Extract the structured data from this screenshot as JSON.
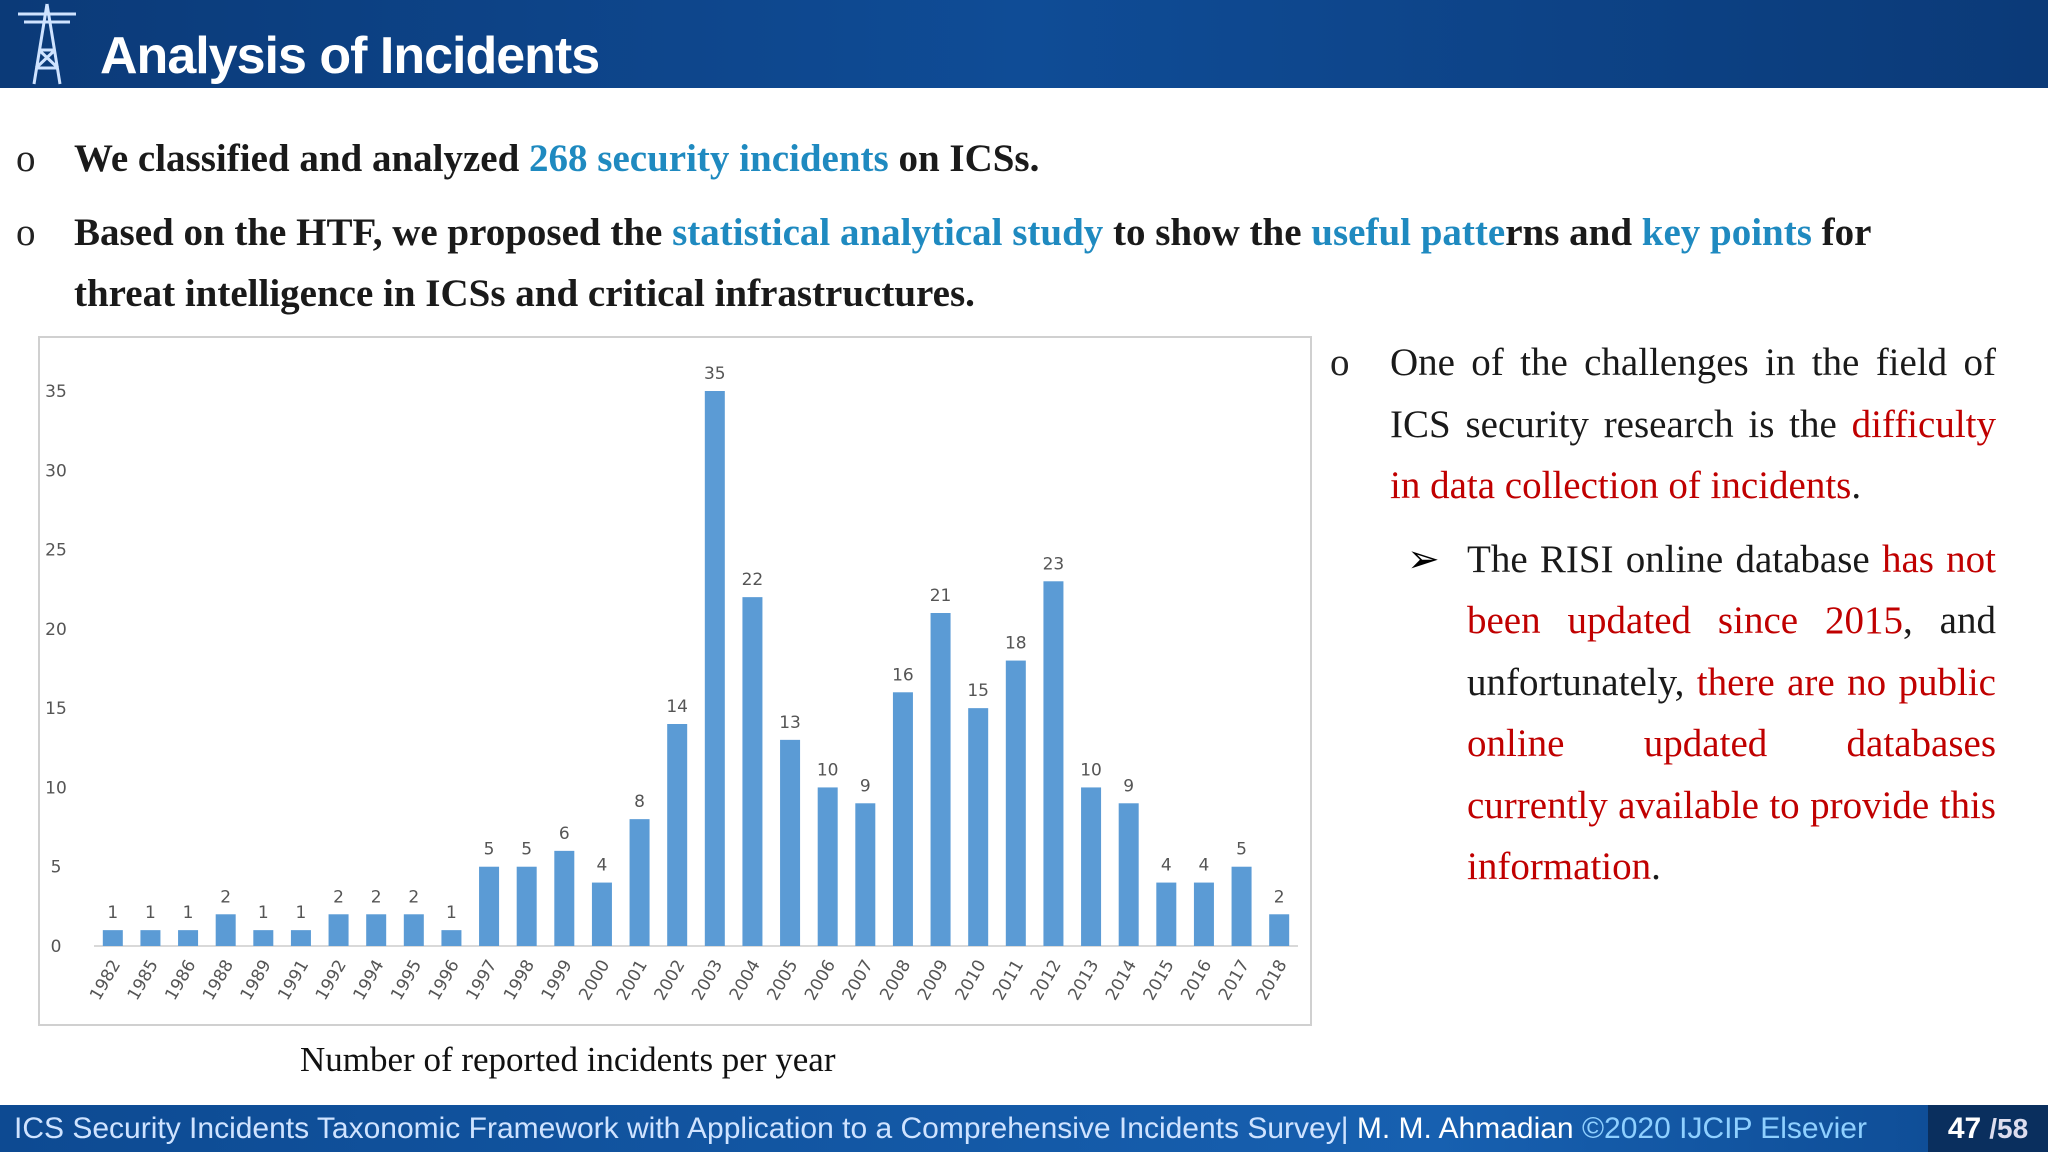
{
  "header": {
    "title": "Analysis of Incidents"
  },
  "bullets": [
    [
      {
        "text": "We classified and analyzed ",
        "color": "#1a1a1a"
      },
      {
        "text": "268 security incidents",
        "color": "#1f8ac0"
      },
      {
        "text": " on ICSs.",
        "color": "#1a1a1a"
      }
    ],
    [
      {
        "text": "Based on the HTF, we proposed the ",
        "color": "#1a1a1a"
      },
      {
        "text": "statistical analytical study",
        "color": "#1f8ac0"
      },
      {
        "text": " to show the ",
        "color": "#1a1a1a"
      },
      {
        "text": "useful patte",
        "color": "#1f8ac0"
      },
      {
        "text": "rns and ",
        "color": "#1a1a1a"
      },
      {
        "text": "key points",
        "color": "#1f8ac0"
      },
      {
        "text": " for threat intelligence in ICSs and critical infrastructures.",
        "color": "#1a1a1a"
      }
    ]
  ],
  "side_text": {
    "paragraph": [
      {
        "text": "One of the challenges in the field of ICS security research is the ",
        "color": "#1a1a1a"
      },
      {
        "text": "difficulty in data collection of incidents",
        "color": "#c00000"
      },
      {
        "text": ".",
        "color": "#1a1a1a"
      }
    ],
    "sub_paragraph": [
      {
        "text": "The RISI online database ",
        "color": "#1a1a1a"
      },
      {
        "text": "has not been updated since 2015",
        "color": "#c00000"
      },
      {
        "text": ", and unfortunately, ",
        "color": "#1a1a1a"
      },
      {
        "text": "there are no public online updated databases currently available to provide this information",
        "color": "#c00000"
      },
      {
        "text": ".",
        "color": "#1a1a1a"
      }
    ]
  },
  "chart_data": {
    "type": "bar",
    "categories": [
      "1982",
      "1985",
      "1986",
      "1988",
      "1989",
      "1991",
      "1992",
      "1994",
      "1995",
      "1996",
      "1997",
      "1998",
      "1999",
      "2000",
      "2001",
      "2002",
      "2003",
      "2004",
      "2005",
      "2006",
      "2007",
      "2008",
      "2009",
      "2010",
      "2011",
      "2012",
      "2013",
      "2014",
      "2015",
      "2016",
      "2017",
      "2018"
    ],
    "values": [
      1,
      1,
      1,
      2,
      1,
      1,
      2,
      2,
      2,
      1,
      5,
      5,
      6,
      4,
      8,
      14,
      35,
      22,
      13,
      10,
      9,
      16,
      21,
      15,
      18,
      23,
      10,
      9,
      4,
      4,
      5,
      2
    ],
    "color": "#5b9bd5",
    "ylim": [
      0,
      35
    ],
    "yticks": [
      0,
      5,
      10,
      15,
      20,
      25,
      30,
      35
    ]
  },
  "caption": "Number of reported incidents per year",
  "footer": [
    {
      "text": "ICS Security Incidents Taxonomic Framework with Application to a Comprehensive Incidents Survey| ",
      "color": "#cfe3ff"
    },
    {
      "text": "M. M. Ahmadian ",
      "color": "#ffffff"
    },
    {
      "text": "©2020 IJCIP Elsevier",
      "color": "#8fd0ff"
    }
  ],
  "page_number": {
    "current": "47",
    "total": "/58"
  }
}
